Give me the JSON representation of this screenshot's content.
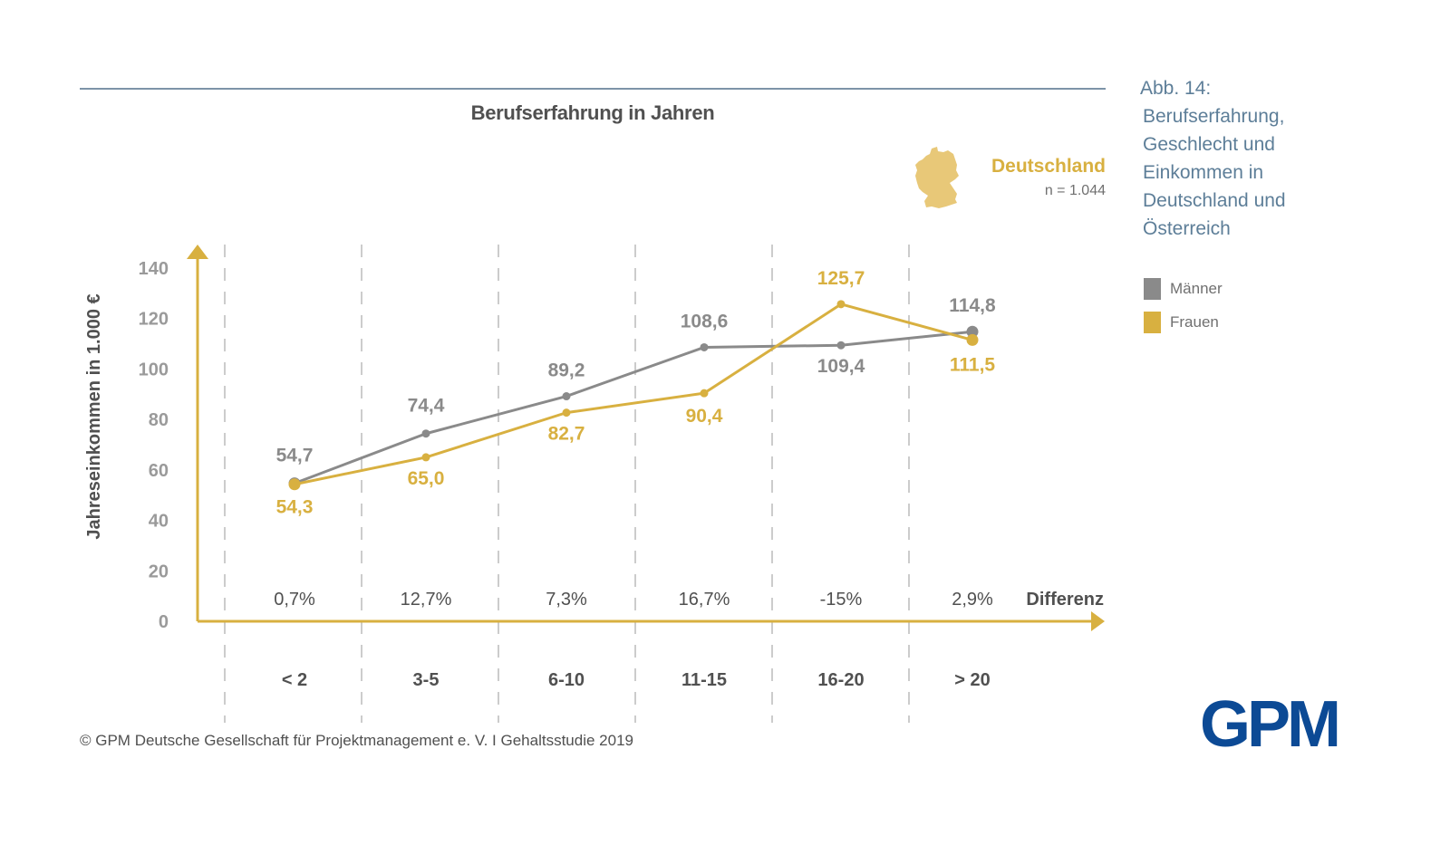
{
  "figure": {
    "caption_lines": [
      "Abb. 14:",
      "Berufserfahrung,",
      "Geschlecht und",
      "Einkommen in",
      "Deutschland und",
      "Österreich"
    ]
  },
  "region": {
    "name": "Deutschland",
    "sample_size": "n = 1.044",
    "icon": "germany-map-icon"
  },
  "legend": [
    {
      "label": "Männer",
      "color": "#8a8a8a"
    },
    {
      "label": "Frauen",
      "color": "#d8b040"
    }
  ],
  "footer": {
    "copyright": "© GPM Deutsche Gesellschaft für Projektmanagement e. V.  I  Gehaltsstudie 2019"
  },
  "logo": {
    "text": "GPM",
    "color": "#0c4a95"
  },
  "colors": {
    "axis": "#d8b040",
    "men": "#8a8a8a",
    "women": "#d8b040",
    "rule": "#7d93a8",
    "caption": "#5d7e98"
  },
  "chart_data": {
    "type": "line",
    "title": "Berufserfahrung in Jahren",
    "xlabel": "Berufserfahrung in Jahren",
    "ylabel": "Jahreseinkommen in 1.000 €",
    "ylim": [
      0,
      140
    ],
    "yticks": [
      0,
      20,
      40,
      60,
      80,
      100,
      120,
      140
    ],
    "grid": "vertical dashed category separators",
    "legend_position": "right",
    "categories": [
      "< 2",
      "3-5",
      "6-10",
      "11-15",
      "16-20",
      "> 20"
    ],
    "series": [
      {
        "name": "Männer",
        "color": "#8a8a8a",
        "values": [
          54.7,
          74.4,
          89.2,
          108.6,
          109.4,
          114.8
        ],
        "labels": [
          "54,7",
          "74,4",
          "89,2",
          "108,6",
          "109,4",
          "114,8"
        ]
      },
      {
        "name": "Frauen",
        "color": "#d8b040",
        "values": [
          54.3,
          65.0,
          82.7,
          90.4,
          125.7,
          111.5
        ],
        "labels": [
          "54,3",
          "65,0",
          "82,7",
          "90,4",
          "125,7",
          "111,5"
        ]
      }
    ],
    "difference_label": "Differenz",
    "differences": [
      "0,7%",
      "12,7%",
      "7,3%",
      "16,7%",
      "-15%",
      "2,9%"
    ]
  }
}
